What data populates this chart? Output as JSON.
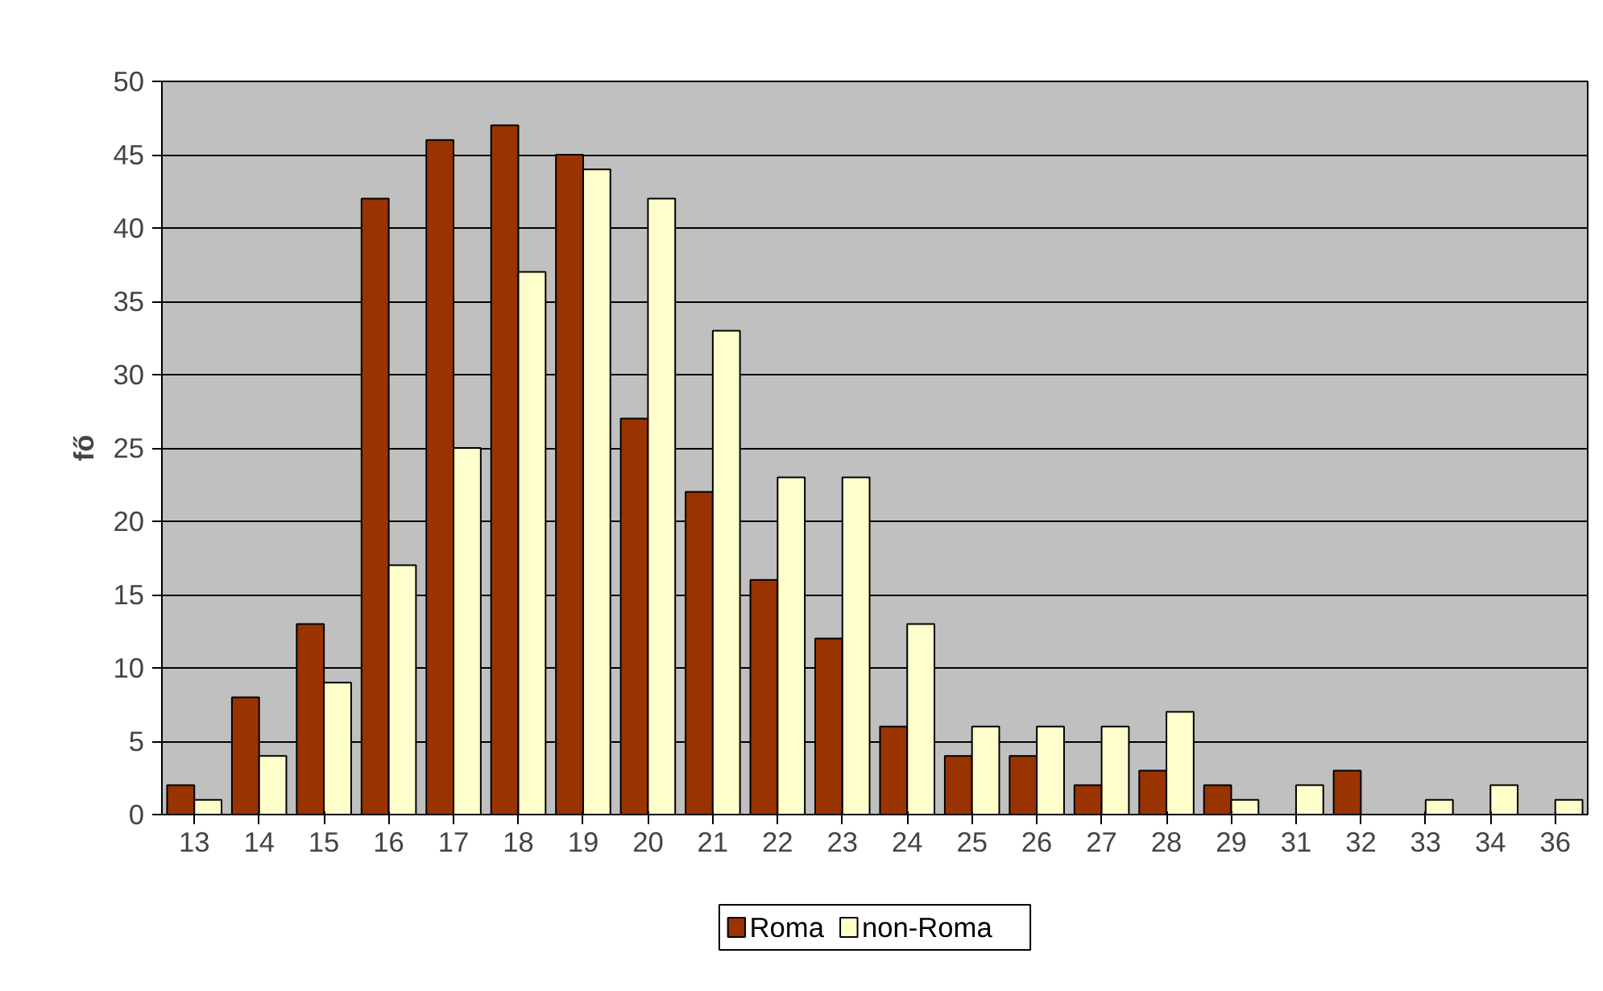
{
  "chart_data": {
    "type": "bar",
    "ylabel": "fő",
    "categories": [
      "13",
      "14",
      "15",
      "16",
      "17",
      "18",
      "19",
      "20",
      "21",
      "22",
      "23",
      "24",
      "25",
      "26",
      "27",
      "28",
      "29",
      "31",
      "32",
      "33",
      "34",
      "36"
    ],
    "series": [
      {
        "name": "Roma",
        "color": "#993300",
        "values": [
          2,
          8,
          13,
          42,
          46,
          47,
          45,
          27,
          22,
          16,
          12,
          6,
          4,
          4,
          2,
          3,
          2,
          0,
          3,
          0,
          0,
          0
        ]
      },
      {
        "name": "non-Roma",
        "color": "#ffffcc",
        "values": [
          1,
          4,
          9,
          17,
          25,
          37,
          44,
          42,
          33,
          23,
          23,
          13,
          6,
          6,
          6,
          7,
          1,
          2,
          0,
          1,
          2,
          1
        ]
      }
    ],
    "ylim": [
      0,
      50
    ],
    "yticks": [
      0,
      5,
      10,
      15,
      20,
      25,
      30,
      35,
      40,
      45,
      50
    ],
    "grid": "y",
    "legend": "bottom"
  }
}
